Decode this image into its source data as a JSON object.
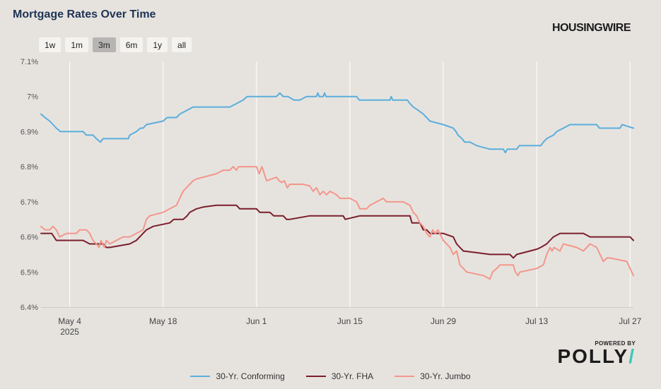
{
  "title": "Mortgage Rates Over Time",
  "brand": "HOUSINGWIRE",
  "range_buttons": [
    "1w",
    "1m",
    "3m",
    "6m",
    "1y",
    "all"
  ],
  "active_range": "3m",
  "powered_by": "POWERED BY",
  "polly_logo": "POLLY",
  "chart_data": {
    "type": "line",
    "y_ticks": [
      "6.4%",
      "6.5%",
      "6.6%",
      "6.7%",
      "6.8%",
      "6.9%",
      "7%",
      "7.1%"
    ],
    "ylim": [
      6.4,
      7.1
    ],
    "x_ticks": [
      {
        "label": "May 4",
        "sub": "2025",
        "day": 4
      },
      {
        "label": "May 18",
        "sub": "",
        "day": 18
      },
      {
        "label": "Jun 1",
        "sub": "",
        "day": 32
      },
      {
        "label": "Jun 15",
        "sub": "",
        "day": 46
      },
      {
        "label": "Jun 29",
        "sub": "",
        "day": 60
      },
      {
        "label": "Jul 13",
        "sub": "",
        "day": 74
      },
      {
        "label": "Jul 27",
        "sub": "",
        "day": 88
      }
    ],
    "xlim": [
      -0.3,
      88.5
    ],
    "grid": "vertical",
    "legend_position": "bottom",
    "series": [
      {
        "name": "30-Yr. Conforming",
        "color": "#5aaedc",
        "points": [
          [
            -0.3,
            6.95
          ],
          [
            0.3,
            6.94
          ],
          [
            1,
            6.93
          ],
          [
            2,
            6.91
          ],
          [
            2.6,
            6.9
          ],
          [
            6,
            6.9
          ],
          [
            6.5,
            6.89
          ],
          [
            7.5,
            6.89
          ],
          [
            8,
            6.88
          ],
          [
            8.6,
            6.87
          ],
          [
            9,
            6.88
          ],
          [
            12,
            6.88
          ],
          [
            12.8,
            6.88
          ],
          [
            13,
            6.89
          ],
          [
            14,
            6.9
          ],
          [
            14.6,
            6.91
          ],
          [
            15,
            6.91
          ],
          [
            15.5,
            6.92
          ],
          [
            18,
            6.93
          ],
          [
            18.6,
            6.94
          ],
          [
            20,
            6.94
          ],
          [
            20.5,
            6.95
          ],
          [
            21.5,
            6.96
          ],
          [
            22.5,
            6.97
          ],
          [
            24,
            6.97
          ],
          [
            28,
            6.97
          ],
          [
            29,
            6.98
          ],
          [
            30,
            6.99
          ],
          [
            30.6,
            7.0
          ],
          [
            35,
            7.0
          ],
          [
            35.5,
            7.01
          ],
          [
            36,
            7.0
          ],
          [
            36.7,
            7.0
          ],
          [
            37.6,
            6.99
          ],
          [
            38.5,
            6.99
          ],
          [
            39.5,
            7.0
          ],
          [
            41,
            7.0
          ],
          [
            41.2,
            7.01
          ],
          [
            41.4,
            7.0
          ],
          [
            42,
            7.0
          ],
          [
            42.2,
            7.01
          ],
          [
            42.4,
            7.0
          ],
          [
            47,
            7.0
          ],
          [
            47.4,
            6.99
          ],
          [
            52,
            6.99
          ],
          [
            52.2,
            7.0
          ],
          [
            52.4,
            6.99
          ],
          [
            54.6,
            6.99
          ],
          [
            55,
            6.98
          ],
          [
            55.5,
            6.97
          ],
          [
            56.3,
            6.96
          ],
          [
            57,
            6.95
          ],
          [
            58,
            6.93
          ],
          [
            60,
            6.92
          ],
          [
            61.5,
            6.91
          ],
          [
            61.9,
            6.9
          ],
          [
            62.2,
            6.89
          ],
          [
            62.8,
            6.88
          ],
          [
            63.2,
            6.87
          ],
          [
            64,
            6.87
          ],
          [
            65,
            6.86
          ],
          [
            67,
            6.85
          ],
          [
            69,
            6.85
          ],
          [
            69.3,
            6.84
          ],
          [
            69.6,
            6.85
          ],
          [
            71,
            6.85
          ],
          [
            71.4,
            6.86
          ],
          [
            74,
            6.86
          ],
          [
            74.6,
            6.86
          ],
          [
            75,
            6.87
          ],
          [
            75.5,
            6.88
          ],
          [
            76.5,
            6.89
          ],
          [
            77,
            6.9
          ],
          [
            78,
            6.91
          ],
          [
            79,
            6.92
          ],
          [
            83,
            6.92
          ],
          [
            83.4,
            6.91
          ],
          [
            86.5,
            6.91
          ],
          [
            86.8,
            6.92
          ],
          [
            88.5,
            6.91
          ]
        ]
      },
      {
        "name": "30-Yr. FHA",
        "color": "#7a1e2a",
        "points": [
          [
            -0.3,
            6.61
          ],
          [
            1.3,
            6.61
          ],
          [
            2,
            6.59
          ],
          [
            6,
            6.59
          ],
          [
            7,
            6.58
          ],
          [
            9,
            6.58
          ],
          [
            9.5,
            6.57
          ],
          [
            10,
            6.57
          ],
          [
            13,
            6.58
          ],
          [
            14,
            6.59
          ],
          [
            15,
            6.61
          ],
          [
            15.5,
            6.62
          ],
          [
            16.5,
            6.63
          ],
          [
            19,
            6.64
          ],
          [
            19.6,
            6.65
          ],
          [
            21,
            6.65
          ],
          [
            21.6,
            6.66
          ],
          [
            22,
            6.67
          ],
          [
            23,
            6.68
          ],
          [
            24,
            6.685
          ],
          [
            26,
            6.69
          ],
          [
            29,
            6.69
          ],
          [
            29.5,
            6.68
          ],
          [
            32,
            6.68
          ],
          [
            32.5,
            6.67
          ],
          [
            34,
            6.67
          ],
          [
            34.6,
            6.66
          ],
          [
            36,
            6.66
          ],
          [
            36.5,
            6.65
          ],
          [
            37,
            6.65
          ],
          [
            38.5,
            6.655
          ],
          [
            40,
            6.66
          ],
          [
            45,
            6.66
          ],
          [
            45.3,
            6.65
          ],
          [
            47.5,
            6.66
          ],
          [
            55,
            6.66
          ],
          [
            55.3,
            6.64
          ],
          [
            56.5,
            6.64
          ],
          [
            57,
            6.62
          ],
          [
            57.5,
            6.62
          ],
          [
            58,
            6.61
          ],
          [
            59,
            6.61
          ],
          [
            60,
            6.61
          ],
          [
            61.5,
            6.6
          ],
          [
            62,
            6.58
          ],
          [
            62.5,
            6.57
          ],
          [
            63,
            6.56
          ],
          [
            65,
            6.555
          ],
          [
            67,
            6.55
          ],
          [
            70,
            6.55
          ],
          [
            70.5,
            6.54
          ],
          [
            71,
            6.55
          ],
          [
            73,
            6.56
          ],
          [
            74,
            6.565
          ],
          [
            74.6,
            6.57
          ],
          [
            75.5,
            6.58
          ],
          [
            76,
            6.59
          ],
          [
            76.5,
            6.6
          ],
          [
            77.5,
            6.61
          ],
          [
            81,
            6.61
          ],
          [
            82,
            6.6
          ],
          [
            88,
            6.6
          ],
          [
            88.5,
            6.59
          ]
        ]
      },
      {
        "name": "30-Yr. Jumbo",
        "color": "#f4968a",
        "points": [
          [
            -0.3,
            6.63
          ],
          [
            0.3,
            6.62
          ],
          [
            1,
            6.62
          ],
          [
            1.5,
            6.63
          ],
          [
            2,
            6.62
          ],
          [
            2.5,
            6.6
          ],
          [
            3.5,
            6.61
          ],
          [
            5,
            6.61
          ],
          [
            5.5,
            6.62
          ],
          [
            6.5,
            6.62
          ],
          [
            7,
            6.61
          ],
          [
            7.5,
            6.59
          ],
          [
            8,
            6.58
          ],
          [
            8.4,
            6.57
          ],
          [
            8.7,
            6.59
          ],
          [
            9.2,
            6.57
          ],
          [
            9.5,
            6.59
          ],
          [
            10,
            6.58
          ],
          [
            11,
            6.59
          ],
          [
            12,
            6.6
          ],
          [
            13,
            6.6
          ],
          [
            14,
            6.61
          ],
          [
            15,
            6.62
          ],
          [
            15.5,
            6.65
          ],
          [
            16,
            6.66
          ],
          [
            18,
            6.67
          ],
          [
            19,
            6.68
          ],
          [
            20,
            6.69
          ],
          [
            20.5,
            6.71
          ],
          [
            21,
            6.73
          ],
          [
            22,
            6.75
          ],
          [
            22.5,
            6.76
          ],
          [
            23,
            6.765
          ],
          [
            26,
            6.78
          ],
          [
            27,
            6.79
          ],
          [
            28,
            6.79
          ],
          [
            28.5,
            6.8
          ],
          [
            29,
            6.79
          ],
          [
            29.3,
            6.8
          ],
          [
            32,
            6.8
          ],
          [
            32.4,
            6.78
          ],
          [
            32.8,
            6.8
          ],
          [
            33,
            6.79
          ],
          [
            33.5,
            6.76
          ],
          [
            35,
            6.77
          ],
          [
            35.4,
            6.76
          ],
          [
            35.8,
            6.755
          ],
          [
            36.2,
            6.76
          ],
          [
            36.6,
            6.74
          ],
          [
            37,
            6.75
          ],
          [
            39,
            6.75
          ],
          [
            40,
            6.745
          ],
          [
            40.5,
            6.73
          ],
          [
            41,
            6.74
          ],
          [
            41.5,
            6.72
          ],
          [
            42,
            6.73
          ],
          [
            42.5,
            6.72
          ],
          [
            43,
            6.73
          ],
          [
            44,
            6.72
          ],
          [
            44.5,
            6.71
          ],
          [
            46,
            6.71
          ],
          [
            47,
            6.7
          ],
          [
            47.5,
            6.68
          ],
          [
            48.5,
            6.68
          ],
          [
            49,
            6.69
          ],
          [
            50,
            6.7
          ],
          [
            51,
            6.71
          ],
          [
            51.5,
            6.7
          ],
          [
            54,
            6.7
          ],
          [
            55,
            6.69
          ],
          [
            55.5,
            6.67
          ],
          [
            56,
            6.66
          ],
          [
            56.5,
            6.64
          ],
          [
            57,
            6.63
          ],
          [
            57.5,
            6.61
          ],
          [
            58,
            6.6
          ],
          [
            58.4,
            6.62
          ],
          [
            58.8,
            6.61
          ],
          [
            59.2,
            6.62
          ],
          [
            60,
            6.59
          ],
          [
            61,
            6.57
          ],
          [
            61.5,
            6.55
          ],
          [
            62,
            6.56
          ],
          [
            62.5,
            6.52
          ],
          [
            63,
            6.51
          ],
          [
            63.5,
            6.5
          ],
          [
            66,
            6.49
          ],
          [
            67,
            6.48
          ],
          [
            67.4,
            6.5
          ],
          [
            68,
            6.51
          ],
          [
            68.5,
            6.52
          ],
          [
            70.5,
            6.52
          ],
          [
            70.8,
            6.5
          ],
          [
            71.2,
            6.49
          ],
          [
            71.5,
            6.5
          ],
          [
            74,
            6.51
          ],
          [
            75,
            6.52
          ],
          [
            75.5,
            6.55
          ],
          [
            76,
            6.57
          ],
          [
            76.3,
            6.56
          ],
          [
            76.6,
            6.57
          ],
          [
            77.5,
            6.56
          ],
          [
            78,
            6.58
          ],
          [
            80,
            6.57
          ],
          [
            80.5,
            6.565
          ],
          [
            81,
            6.56
          ],
          [
            82,
            6.58
          ],
          [
            83,
            6.57
          ],
          [
            83.5,
            6.55
          ],
          [
            84,
            6.53
          ],
          [
            84.5,
            6.54
          ],
          [
            85,
            6.54
          ],
          [
            87.5,
            6.53
          ],
          [
            88,
            6.51
          ],
          [
            88.5,
            6.49
          ]
        ]
      }
    ]
  }
}
